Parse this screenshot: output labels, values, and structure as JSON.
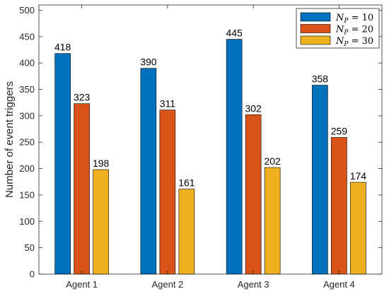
{
  "chart_data": {
    "type": "bar",
    "categories": [
      "Agent 1",
      "Agent 2",
      "Agent 3",
      "Agent 4"
    ],
    "series": [
      {
        "name": "N_P = 10",
        "legend_main": "N",
        "legend_sub": "P",
        "legend_rest": " = 10",
        "color": "#0072BD",
        "values": [
          418,
          390,
          445,
          358
        ]
      },
      {
        "name": "N_P = 20",
        "legend_main": "N",
        "legend_sub": "P",
        "legend_rest": " = 20",
        "color": "#D95319",
        "values": [
          323,
          311,
          302,
          259
        ]
      },
      {
        "name": "N_P = 30",
        "legend_main": "N",
        "legend_sub": "P",
        "legend_rest": " = 30",
        "color": "#EDB120",
        "values": [
          198,
          161,
          202,
          174
        ]
      }
    ],
    "xlabel": "",
    "ylabel": "Number of event triggers",
    "ylim": [
      0,
      510
    ],
    "yticks": [
      0,
      50,
      100,
      150,
      200,
      250,
      300,
      350,
      400,
      450,
      500
    ],
    "grid": false,
    "legend_position": "top-right"
  }
}
